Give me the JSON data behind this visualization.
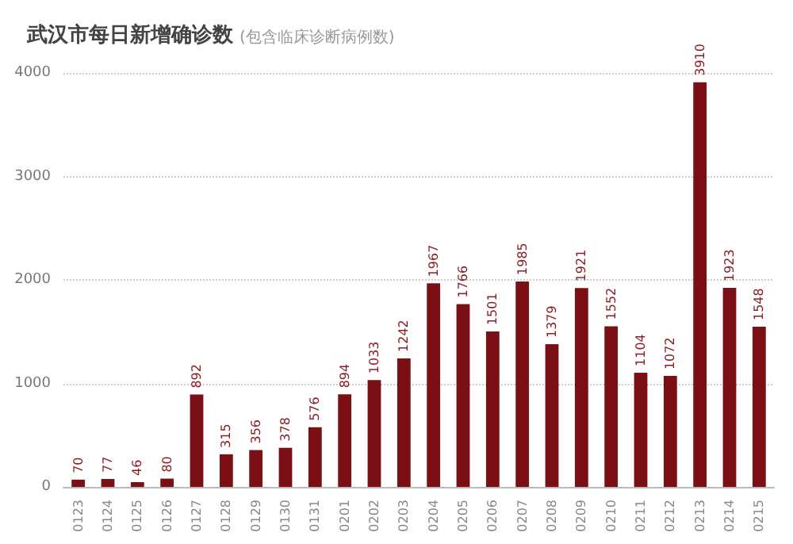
{
  "chart_data": {
    "type": "bar",
    "title": "武汉市每日新增确诊数",
    "subtitle": "(包含临床诊断病例数)",
    "categories": [
      "0123",
      "0124",
      "0125",
      "0126",
      "0127",
      "0128",
      "0129",
      "0130",
      "0131",
      "0201",
      "0202",
      "0203",
      "0204",
      "0205",
      "0206",
      "0207",
      "0208",
      "0209",
      "0210",
      "0211",
      "0212",
      "0213",
      "0214",
      "0215"
    ],
    "values": [
      70,
      77,
      46,
      80,
      892,
      315,
      356,
      378,
      576,
      894,
      1033,
      1242,
      1967,
      1766,
      1501,
      1985,
      1379,
      1921,
      1552,
      1104,
      1072,
      3910,
      1923,
      1548
    ],
    "color": "#7a1015",
    "ylim": [
      0,
      4000
    ],
    "yticks": [
      0,
      1000,
      2000,
      3000,
      4000
    ],
    "grid": "y",
    "data_labels": true
  }
}
